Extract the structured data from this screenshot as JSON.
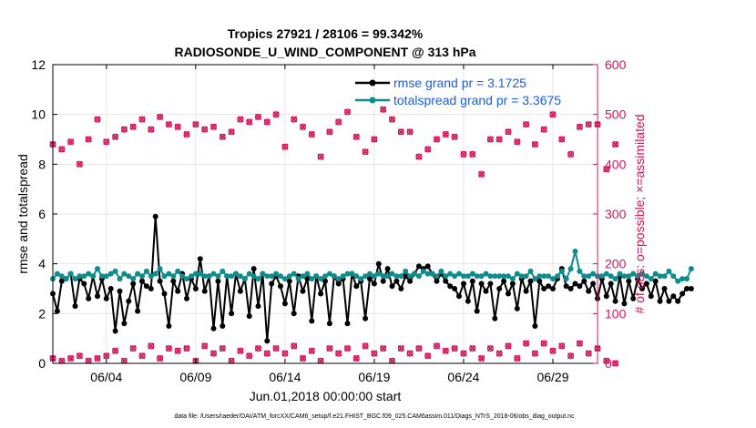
{
  "chart_data": {
    "type": "line",
    "title": "Tropics 27921 / 28106 = 99.342%",
    "subtitle": "RADIOSONDE_U_WIND_COMPONENT @ 313 hPa",
    "xlabel": "Jun.01,2018 00:00:00 start",
    "ylabel": "rmse and totalspread",
    "y2label": "# of obs: o=possible; ×=assimilated",
    "footer": "data file: /Users/raeder/DAI/ATM_forcXX/CAM6_setup/f.e21.FHIST_BGC.f09_025.CAM6assim.011/Diags_NTrS_2018-06/obs_diag_output.nc",
    "x_ticks": [
      "06/04",
      "06/09",
      "06/14",
      "06/19",
      "06/24",
      "06/29"
    ],
    "x_tick_days": [
      4,
      9,
      14,
      19,
      24,
      29
    ],
    "xlim": [
      1,
      31.5
    ],
    "ylim": [
      0,
      12
    ],
    "y_ticks": [
      "0",
      "2",
      "4",
      "6",
      "8",
      "10",
      "12"
    ],
    "y2lim": [
      0,
      600
    ],
    "y2_ticks": [
      "0",
      "100",
      "200",
      "300",
      "400",
      "500",
      "600"
    ],
    "legend": [
      "rmse grand pr = 3.1725",
      "totalspread grand pr = 3.3675"
    ],
    "colors": {
      "rmse": "#000000",
      "spread": "#0e8c8c",
      "obs": "#d4145a",
      "axis2": "#d4145a",
      "legend_text": "#1a5fe0"
    },
    "series": [
      {
        "name": "rmse",
        "x_start": 1.0,
        "dx": 0.25,
        "values": [
          2.8,
          2.1,
          3.3,
          3.4,
          3.6,
          2.3,
          3.4,
          3.2,
          2.6,
          3.5,
          2.7,
          3.4,
          2.6,
          3.0,
          1.3,
          2.9,
          1.6,
          2.5,
          3.2,
          2.1,
          3.3,
          3.1,
          3.0,
          5.9,
          3.3,
          2.8,
          1.5,
          3.3,
          2.9,
          3.6,
          2.6,
          3.4,
          3.0,
          4.2,
          2.9,
          3.5,
          1.4,
          3.3,
          1.5,
          3.5,
          2.0,
          3.6,
          2.9,
          3.4,
          1.9,
          3.8,
          2.3,
          3.6,
          0.9,
          3.2,
          3.5,
          3.1,
          2.4,
          3.3,
          2.0,
          3.5,
          2.9,
          3.4,
          1.7,
          3.5,
          2.8,
          3.3,
          1.6,
          3.5,
          3.2,
          3.4,
          1.6,
          3.6,
          3.1,
          3.3,
          1.8,
          3.4,
          3.2,
          4.0,
          3.3,
          3.8,
          3.1,
          3.3,
          3.0,
          3.5,
          3.3,
          3.6,
          3.9,
          3.8,
          3.9,
          3.6,
          3.3,
          3.6,
          3.3,
          3.1,
          3.0,
          2.7,
          3.2,
          2.5,
          3.3,
          2.1,
          3.2,
          2.9,
          3.2,
          1.8,
          3.0,
          3.3,
          2.8,
          3.2,
          2.2,
          3.4,
          2.9,
          3.3,
          1.5,
          3.3,
          3.0,
          3.1,
          3.0,
          3.4,
          3.8,
          3.1,
          3.0,
          3.2,
          3.1,
          3.3,
          2.9,
          3.2,
          2.6,
          3.4,
          2.7,
          3.2,
          2.5,
          3.5,
          2.4,
          3.3,
          2.6,
          3.4,
          3.0,
          3.2,
          2.7,
          3.3,
          2.5,
          3.0,
          2.5,
          2.7,
          2.5,
          2.8,
          3.0,
          3.0
        ]
      },
      {
        "name": "totalspread",
        "x_start": 1.0,
        "dx": 0.25,
        "values": [
          3.4,
          3.6,
          3.5,
          3.4,
          3.6,
          3.4,
          3.5,
          3.5,
          3.6,
          3.5,
          3.8,
          3.5,
          3.5,
          3.6,
          3.7,
          3.4,
          3.6,
          3.5,
          3.4,
          3.6,
          3.5,
          3.7,
          3.5,
          3.6,
          3.8,
          3.5,
          3.6,
          3.5,
          3.7,
          3.5,
          3.4,
          3.5,
          3.6,
          3.6,
          3.5,
          3.5,
          3.6,
          3.5,
          3.7,
          3.5,
          3.5,
          3.6,
          3.5,
          3.4,
          3.6,
          3.5,
          3.4,
          3.6,
          3.5,
          3.5,
          3.6,
          3.5,
          3.4,
          3.5,
          3.6,
          3.4,
          3.5,
          3.6,
          3.4,
          3.5,
          3.4,
          3.5,
          3.6,
          3.5,
          3.4,
          3.5,
          3.6,
          3.6,
          3.5,
          3.4,
          3.5,
          3.6,
          3.5,
          3.6,
          3.5,
          3.5,
          3.6,
          3.5,
          3.5,
          3.7,
          3.5,
          3.6,
          3.5,
          3.7,
          3.6,
          3.6,
          3.5,
          3.7,
          3.5,
          3.6,
          3.5,
          3.6,
          3.5,
          3.5,
          3.6,
          3.5,
          3.5,
          3.6,
          3.5,
          3.5,
          3.5,
          3.5,
          3.5,
          3.4,
          3.6,
          3.5,
          3.5,
          3.7,
          3.4,
          3.5,
          3.5,
          3.5,
          3.4,
          3.5,
          3.7,
          3.4,
          3.8,
          4.5,
          3.7,
          3.5,
          3.5,
          3.6,
          3.5,
          3.5,
          3.6,
          3.5,
          3.4,
          3.6,
          3.5,
          3.5,
          3.6,
          3.5,
          3.6,
          3.5,
          3.4,
          3.6,
          3.5,
          3.5,
          3.7,
          3.5,
          3.3,
          3.4,
          3.4,
          3.8
        ]
      },
      {
        "name": "obs_possible_high",
        "x_start": 1.0,
        "dx": 0.5,
        "values": [
          440,
          430,
          445,
          400,
          450,
          490,
          445,
          455,
          470,
          475,
          490,
          470,
          495,
          480,
          475,
          460,
          480,
          470,
          475,
          455,
          465,
          490,
          485,
          495,
          485,
          500,
          435,
          490,
          475,
          460,
          415,
          465,
          485,
          505,
          455,
          425,
          450,
          510,
          490,
          465,
          465,
          415,
          430,
          450,
          460,
          455,
          420,
          420,
          380,
          450,
          450,
          465,
          445,
          480,
          440,
          470,
          500,
          450,
          420,
          475,
          480,
          480,
          390,
          440
        ]
      },
      {
        "name": "obs_possible_low",
        "x_start": 1.0,
        "dx": 0.5,
        "values": [
          10,
          5,
          10,
          15,
          5,
          10,
          15,
          25,
          5,
          30,
          15,
          35,
          10,
          30,
          25,
          30,
          5,
          35,
          20,
          30,
          5,
          25,
          15,
          30,
          20,
          30,
          20,
          35,
          10,
          25,
          5,
          30,
          20,
          30,
          10,
          35,
          20,
          30,
          5,
          30,
          20,
          30,
          15,
          35,
          25,
          30,
          20,
          30,
          10,
          30,
          20,
          35,
          10,
          40,
          20,
          40,
          25,
          35,
          15,
          40,
          20,
          30,
          5,
          0
        ]
      }
    ]
  }
}
